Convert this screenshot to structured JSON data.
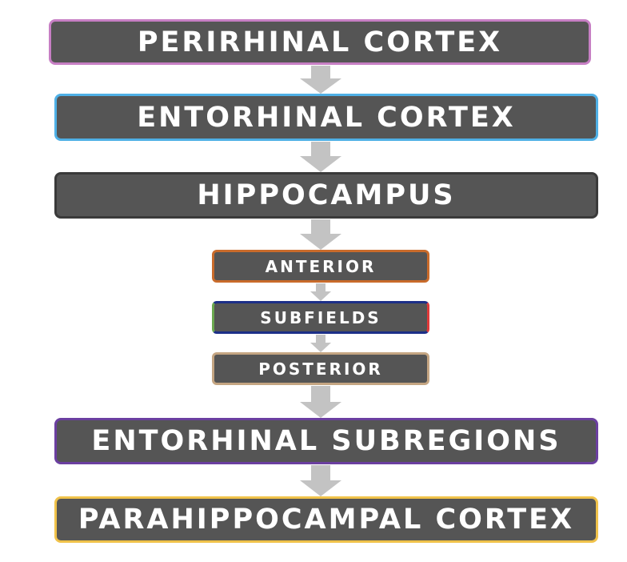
{
  "colors": {
    "box_fill": "#555555",
    "arrow": "#c3c3c3",
    "perirhinal_border": "#c77fc4",
    "entorhinal_border": "#4fb0e6",
    "hippocampus_border": "#3a3a3a",
    "anterior_border": "#c96b2b",
    "subfields_border_left": "#6aa84f",
    "subfields_border_top": "#1c2f88",
    "subfields_border_right": "#e03a3a",
    "posterior_border": "#c4a582",
    "entorhinal_subregions_border": "#6b3fa0",
    "parahippocampal_border": "#f0c24a"
  },
  "boxes": {
    "perirhinal": "PERIRHINAL CORTEX",
    "entorhinal": "ENTORHINAL CORTEX",
    "hippocampus": "HIPPOCAMPUS",
    "anterior": "ANTERIOR",
    "subfields": "SUBFIELDS",
    "posterior": "POSTERIOR",
    "entorhinal_subregions": "ENTORHINAL SUBREGIONS",
    "parahippocampal": "PARAHIPPOCAMPAL CORTEX"
  }
}
